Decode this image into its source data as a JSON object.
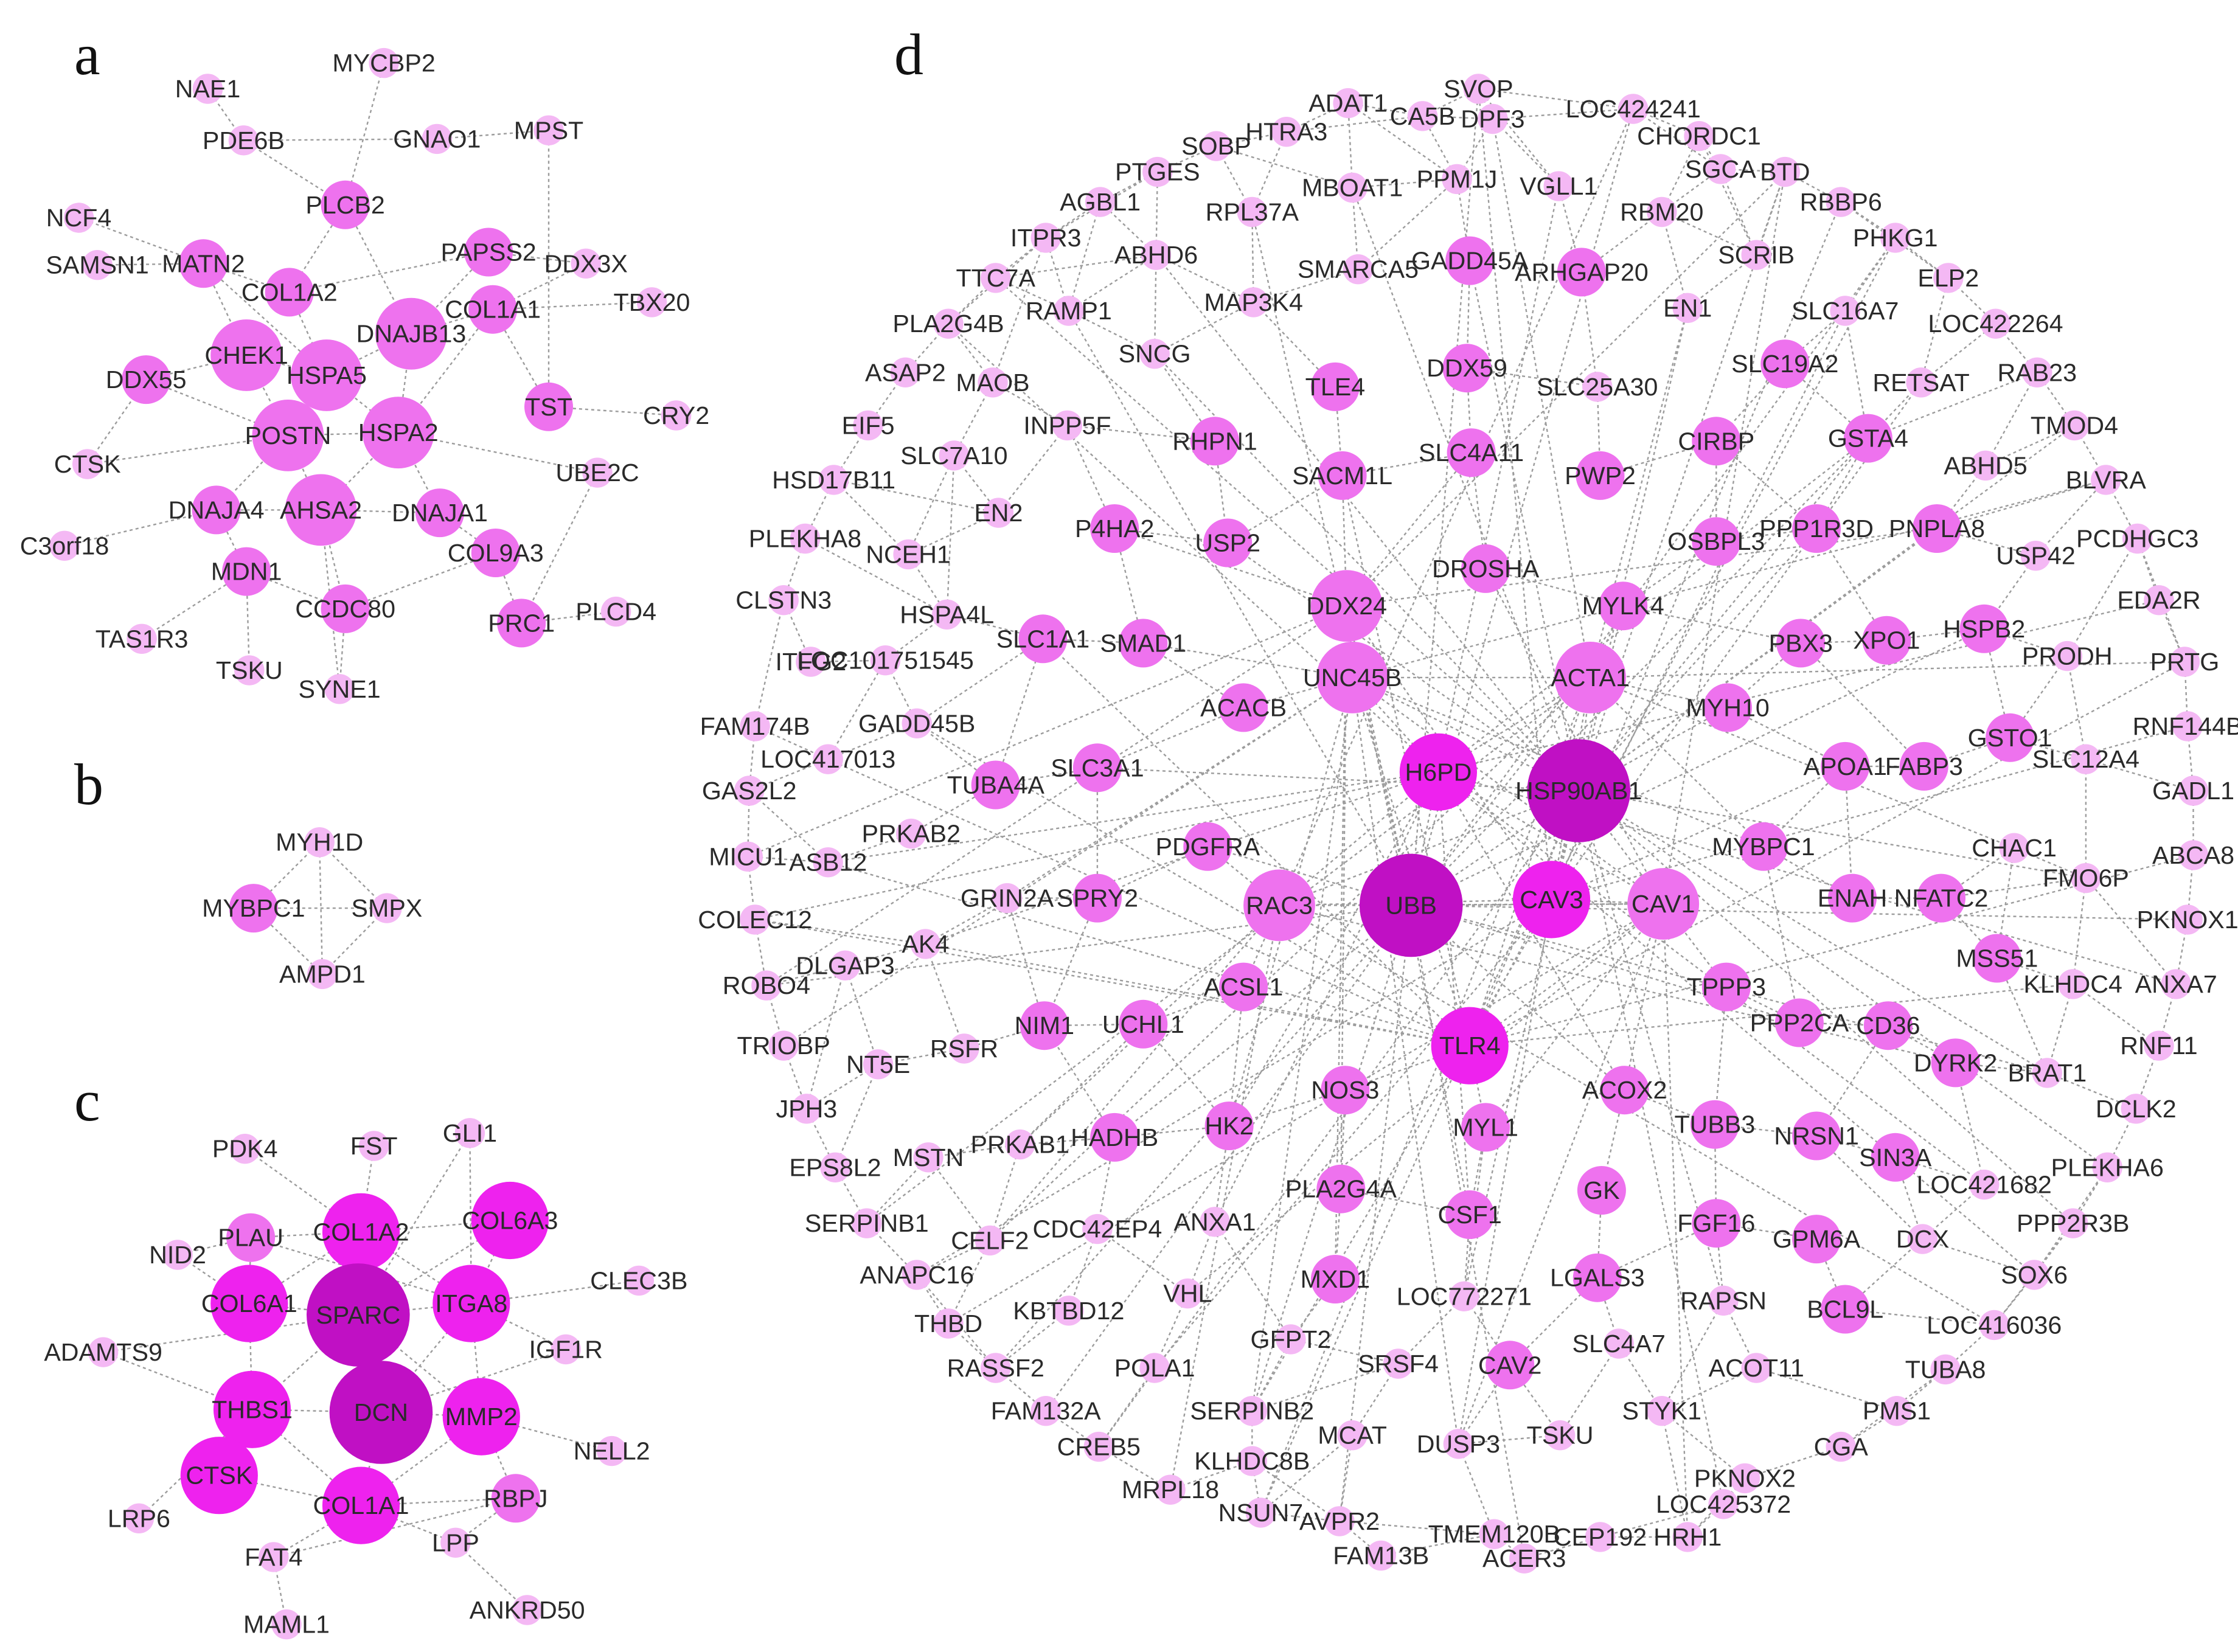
{
  "colors": {
    "light": "#f4b8f4",
    "mid": "#ee72ee",
    "strong": "#ee22ee",
    "deep": "#c010c4",
    "edge": "#9c9c9c"
  },
  "panels": [
    {
      "letter": "a",
      "nodes": [
        [
          "MYCBP2",
          "s"
        ],
        [
          "NAE1",
          "s"
        ],
        [
          "PDE6B",
          "s"
        ],
        [
          "GNAO1",
          "s"
        ],
        [
          "MPST",
          "s"
        ],
        [
          "NCF4",
          "s"
        ],
        [
          "PLCB2",
          "m"
        ],
        [
          "SAMSN1",
          "s"
        ],
        [
          "MATN2",
          "m"
        ],
        [
          "PAPSS2",
          "m"
        ],
        [
          "DDX3X",
          "s"
        ],
        [
          "COL1A2",
          "m"
        ],
        [
          "COL1A1",
          "m"
        ],
        [
          "TBX20",
          "s"
        ],
        [
          "DNAJB13",
          "l"
        ],
        [
          "CHEK1",
          "l"
        ],
        [
          "DDX55",
          "m"
        ],
        [
          "HSPA5",
          "l"
        ],
        [
          "TST",
          "m"
        ],
        [
          "CRY2",
          "s"
        ],
        [
          "POSTN",
          "l"
        ],
        [
          "HSPA2",
          "l"
        ],
        [
          "CTSK",
          "s"
        ],
        [
          "UBE2C",
          "s"
        ],
        [
          "DNAJA4",
          "m"
        ],
        [
          "AHSA2",
          "l"
        ],
        [
          "DNAJA1",
          "m"
        ],
        [
          "C3orf18",
          "s"
        ],
        [
          "COL9A3",
          "m"
        ],
        [
          "MDN1",
          "m"
        ],
        [
          "CCDC80",
          "m"
        ],
        [
          "PRC1",
          "m"
        ],
        [
          "PLCD4",
          "s"
        ],
        [
          "TAS1R3",
          "s"
        ],
        [
          "TSKU",
          "s"
        ],
        [
          "SYNE1",
          "s"
        ]
      ]
    },
    {
      "letter": "b",
      "nodes": [
        [
          "MYH1D",
          "s"
        ],
        [
          "MYBPC1",
          "m"
        ],
        [
          "SMPX",
          "s"
        ],
        [
          "AMPD1",
          "s"
        ]
      ]
    },
    {
      "letter": "c",
      "nodes": [
        [
          "GLI1",
          "s"
        ],
        [
          "PDK4",
          "s"
        ],
        [
          "FST",
          "s"
        ],
        [
          "COL6A3",
          "x"
        ],
        [
          "PLAU",
          "m"
        ],
        [
          "COL1A2",
          "x"
        ],
        [
          "NID2",
          "s"
        ],
        [
          "CLEC3B",
          "s"
        ],
        [
          "COL6A1",
          "x"
        ],
        [
          "SPARC",
          "z"
        ],
        [
          "ITGA8",
          "x"
        ],
        [
          "IGF1R",
          "s"
        ],
        [
          "ADAMTS9",
          "s"
        ],
        [
          "THBS1",
          "x"
        ],
        [
          "DCN",
          "z"
        ],
        [
          "MMP2",
          "x"
        ],
        [
          "NELL2",
          "s"
        ],
        [
          "CTSK",
          "x"
        ],
        [
          "COL1A1",
          "x"
        ],
        [
          "RBPJ",
          "m"
        ],
        [
          "LRP6",
          "s"
        ],
        [
          "LPP",
          "s"
        ],
        [
          "FAT4",
          "s"
        ],
        [
          "ANKRD50",
          "s"
        ],
        [
          "MAML1",
          "s"
        ]
      ]
    },
    {
      "letter": "d",
      "nodes": [
        [
          "SVOP",
          "s"
        ],
        [
          "ADAT1",
          "s"
        ],
        [
          "CA5B",
          "s"
        ],
        [
          "DPF3",
          "s"
        ],
        [
          "LOC424241",
          "s"
        ],
        [
          "HTRA3",
          "s"
        ],
        [
          "SOBP",
          "s"
        ],
        [
          "CHORDC1",
          "s"
        ],
        [
          "PTGES",
          "s"
        ],
        [
          "SGCA",
          "s"
        ],
        [
          "BTD",
          "s"
        ],
        [
          "PPM1J",
          "s"
        ],
        [
          "VGLL1",
          "s"
        ],
        [
          "MBOAT1",
          "s"
        ],
        [
          "AGBL1",
          "s"
        ],
        [
          "RBBP6",
          "s"
        ],
        [
          "RPL37A",
          "s"
        ],
        [
          "RBM20",
          "s"
        ],
        [
          "ITPR3",
          "s"
        ],
        [
          "PHKG1",
          "s"
        ],
        [
          "ABHD6",
          "s"
        ],
        [
          "SCRIB",
          "s"
        ],
        [
          "TTC7A",
          "s"
        ],
        [
          "GADD45A",
          "m"
        ],
        [
          "SMARCA5",
          "s"
        ],
        [
          "ARHGAP20",
          "m"
        ],
        [
          "ELP2",
          "s"
        ],
        [
          "MAP3K4",
          "s"
        ],
        [
          "RAMP1",
          "s"
        ],
        [
          "EN1",
          "s"
        ],
        [
          "SLC16A7",
          "s"
        ],
        [
          "PLA2G4B",
          "s"
        ],
        [
          "LOC422264",
          "s"
        ],
        [
          "SNCG",
          "s"
        ],
        [
          "ASAP2",
          "s"
        ],
        [
          "DDX59",
          "m"
        ],
        [
          "SLC19A2",
          "m"
        ],
        [
          "MAOB",
          "s"
        ],
        [
          "TLE4",
          "m"
        ],
        [
          "SLC25A30",
          "s"
        ],
        [
          "RAB23",
          "s"
        ],
        [
          "RETSAT",
          "s"
        ],
        [
          "INPP5F",
          "s"
        ],
        [
          "EIF5",
          "s"
        ],
        [
          "TMOD4",
          "s"
        ],
        [
          "CIRBP",
          "m"
        ],
        [
          "RHPN1",
          "m"
        ],
        [
          "GSTA4",
          "m"
        ],
        [
          "SLC7A10",
          "s"
        ],
        [
          "SLC4A11",
          "m"
        ],
        [
          "ABHD5",
          "s"
        ],
        [
          "HSD17B11",
          "s"
        ],
        [
          "SACM1L",
          "m"
        ],
        [
          "PWP2",
          "m"
        ],
        [
          "BLVRA",
          "s"
        ],
        [
          "EN2",
          "s"
        ],
        [
          "P4HA2",
          "m"
        ],
        [
          "PPP1R3D",
          "m"
        ],
        [
          "PNPLA8",
          "m"
        ],
        [
          "PLEKHA8",
          "s"
        ],
        [
          "USP2",
          "m"
        ],
        [
          "OSBPL3",
          "m"
        ],
        [
          "PCDHGC3",
          "s"
        ],
        [
          "NCEH1",
          "s"
        ],
        [
          "USP42",
          "s"
        ],
        [
          "DROSHA",
          "m"
        ],
        [
          "CLSTN3",
          "s"
        ],
        [
          "EDA2R",
          "s"
        ],
        [
          "HSPA4L",
          "s"
        ],
        [
          "DDX24",
          "l"
        ],
        [
          "MYLK4",
          "m"
        ],
        [
          "SLC1A1",
          "m"
        ],
        [
          "SMAD1",
          "m"
        ],
        [
          "XPO1",
          "m"
        ],
        [
          "HSPB2",
          "m"
        ],
        [
          "PBX3",
          "m"
        ],
        [
          "ITFG2",
          "s"
        ],
        [
          "LOC101751545",
          "s"
        ],
        [
          "PRODH",
          "s"
        ],
        [
          "PRTG",
          "s"
        ],
        [
          "UNC45B",
          "l"
        ],
        [
          "ACTA1",
          "l"
        ],
        [
          "MYH10",
          "m"
        ],
        [
          "ACACB",
          "m"
        ],
        [
          "FAM174B",
          "s"
        ],
        [
          "GADD45B",
          "s"
        ],
        [
          "RNF144B",
          "s"
        ],
        [
          "GSTO1",
          "m"
        ],
        [
          "H6PD",
          "x"
        ],
        [
          "LOC417013",
          "s"
        ],
        [
          "SLC12A4",
          "s"
        ],
        [
          "HSP90AB1",
          "z"
        ],
        [
          "APOA1",
          "m"
        ],
        [
          "FABP3",
          "m"
        ],
        [
          "SLC3A1",
          "m"
        ],
        [
          "GAS2L2",
          "s"
        ],
        [
          "TUBA4A",
          "m"
        ],
        [
          "GADL1",
          "s"
        ],
        [
          "PRKAB2",
          "s"
        ],
        [
          "MYBPC1",
          "m"
        ],
        [
          "PDGFRA",
          "m"
        ],
        [
          "CHAC1",
          "s"
        ],
        [
          "ABCA8",
          "s"
        ],
        [
          "MICU1",
          "s"
        ],
        [
          "ASB12",
          "s"
        ],
        [
          "FMO6P",
          "s"
        ],
        [
          "GRIN2A",
          "s"
        ],
        [
          "SPRY2",
          "m"
        ],
        [
          "RAC3",
          "l"
        ],
        [
          "UBB",
          "z"
        ],
        [
          "CAV3",
          "x"
        ],
        [
          "CAV1",
          "l"
        ],
        [
          "ENAH",
          "m"
        ],
        [
          "NFATC2",
          "m"
        ],
        [
          "COLEC12",
          "s"
        ],
        [
          "PKNOX1",
          "s"
        ],
        [
          "AK4",
          "s"
        ],
        [
          "DLGAP3",
          "s"
        ],
        [
          "ROBO4",
          "s"
        ],
        [
          "MSS51",
          "m"
        ],
        [
          "KLHDC4",
          "s"
        ],
        [
          "ANXA7",
          "s"
        ],
        [
          "ACSL1",
          "m"
        ],
        [
          "TPPP3",
          "m"
        ],
        [
          "TLR4",
          "x"
        ],
        [
          "PPP2CA",
          "m"
        ],
        [
          "CD36",
          "m"
        ],
        [
          "NIM1",
          "m"
        ],
        [
          "UCHL1",
          "m"
        ],
        [
          "TRIOBP",
          "s"
        ],
        [
          "RSFR",
          "s"
        ],
        [
          "NT5E",
          "s"
        ],
        [
          "RNF11",
          "s"
        ],
        [
          "DYRK2",
          "m"
        ],
        [
          "BRAT1",
          "s"
        ],
        [
          "NOS3",
          "m"
        ],
        [
          "ACOX2",
          "m"
        ],
        [
          "JPH3",
          "s"
        ],
        [
          "MYL1",
          "m"
        ],
        [
          "DCLK2",
          "s"
        ],
        [
          "HK2",
          "m"
        ],
        [
          "TUBB3",
          "m"
        ],
        [
          "NRSN1",
          "m"
        ],
        [
          "HADHB",
          "m"
        ],
        [
          "PRKAB1",
          "s"
        ],
        [
          "EPS8L2",
          "s"
        ],
        [
          "MSTN",
          "s"
        ],
        [
          "SIN3A",
          "m"
        ],
        [
          "PLEKHA6",
          "s"
        ],
        [
          "LOC421682",
          "s"
        ],
        [
          "GK",
          "m"
        ],
        [
          "PLA2G4A",
          "m"
        ],
        [
          "CSF1",
          "m"
        ],
        [
          "SERPINB1",
          "s"
        ],
        [
          "ANXA1",
          "s"
        ],
        [
          "FGF16",
          "m"
        ],
        [
          "PPP2R3B",
          "s"
        ],
        [
          "CDC42EP4",
          "s"
        ],
        [
          "CELF2",
          "s"
        ],
        [
          "GPM6A",
          "m"
        ],
        [
          "DCX",
          "s"
        ],
        [
          "ANAPC16",
          "s"
        ],
        [
          "SOX6",
          "s"
        ],
        [
          "MXD1",
          "m"
        ],
        [
          "LGALS3",
          "m"
        ],
        [
          "VHL",
          "s"
        ],
        [
          "LOC772271",
          "s"
        ],
        [
          "RAPSN",
          "s"
        ],
        [
          "BCL9L",
          "m"
        ],
        [
          "LOC416036",
          "s"
        ],
        [
          "KBTBD12",
          "s"
        ],
        [
          "THBD",
          "s"
        ],
        [
          "GFPT2",
          "s"
        ],
        [
          "SLC4A7",
          "s"
        ],
        [
          "SRSF4",
          "s"
        ],
        [
          "CAV2",
          "m"
        ],
        [
          "TUBA8",
          "s"
        ],
        [
          "ACOT11",
          "s"
        ],
        [
          "RASSF2",
          "s"
        ],
        [
          "POLA1",
          "s"
        ],
        [
          "STYK1",
          "s"
        ],
        [
          "PMS1",
          "s"
        ],
        [
          "FAM132A",
          "s"
        ],
        [
          "SERPINB2",
          "s"
        ],
        [
          "CREB5",
          "s"
        ],
        [
          "MCAT",
          "s"
        ],
        [
          "TSKU",
          "s"
        ],
        [
          "DUSP3",
          "s"
        ],
        [
          "CGA",
          "s"
        ],
        [
          "KLHDC8B",
          "s"
        ],
        [
          "PKNOX2",
          "s"
        ],
        [
          "MRPL18",
          "s"
        ],
        [
          "LOC425372",
          "s"
        ],
        [
          "NSUN7",
          "s"
        ],
        [
          "AVPR2",
          "s"
        ],
        [
          "TMEM120B",
          "s"
        ],
        [
          "CEP192",
          "s"
        ],
        [
          "HRH1",
          "s"
        ],
        [
          "FAM13B",
          "s"
        ],
        [
          "ACER3",
          "s"
        ]
      ]
    }
  ]
}
